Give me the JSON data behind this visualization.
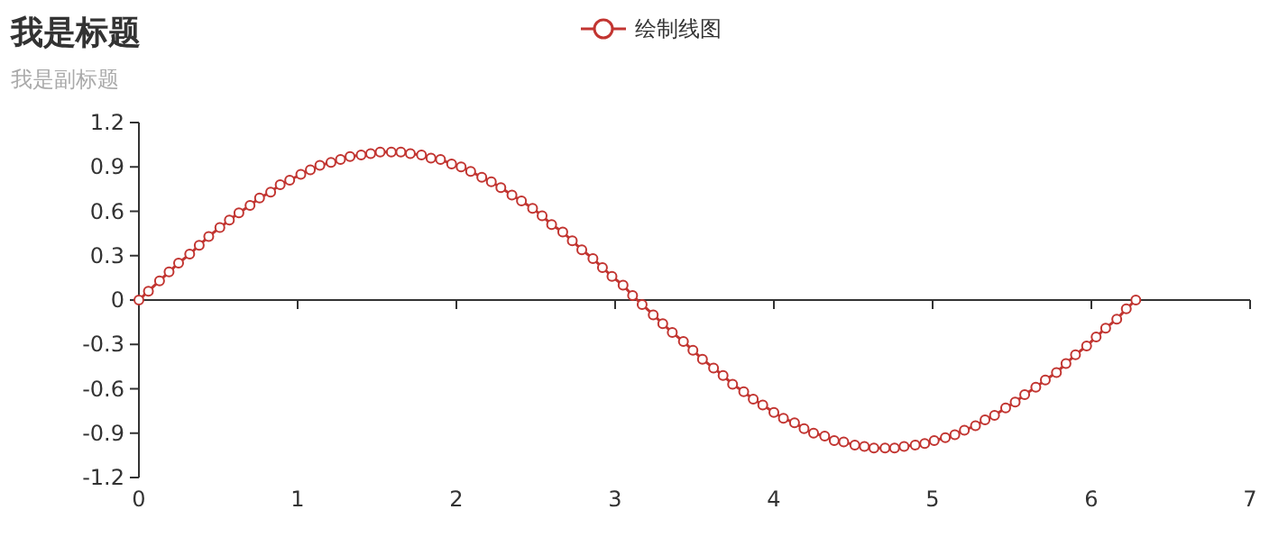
{
  "chart_data": {
    "type": "line",
    "title": "我是标题",
    "subtitle": "我是副标题",
    "x": [
      0,
      0.06,
      0.13,
      0.19,
      0.25,
      0.32,
      0.38,
      0.44,
      0.51,
      0.57,
      0.63,
      0.7,
      0.76,
      0.83,
      0.89,
      0.95,
      1.02,
      1.08,
      1.14,
      1.21,
      1.27,
      1.33,
      1.4,
      1.46,
      1.52,
      1.59,
      1.65,
      1.71,
      1.78,
      1.84,
      1.9,
      1.97,
      2.03,
      2.09,
      2.16,
      2.22,
      2.28,
      2.35,
      2.41,
      2.48,
      2.54,
      2.6,
      2.67,
      2.73,
      2.79,
      2.86,
      2.92,
      2.98,
      3.05,
      3.11,
      3.17,
      3.24,
      3.3,
      3.36,
      3.43,
      3.49,
      3.55,
      3.62,
      3.68,
      3.74,
      3.81,
      3.87,
      3.93,
      4.0,
      4.06,
      4.13,
      4.19,
      4.25,
      4.32,
      4.38,
      4.44,
      4.51,
      4.57,
      4.63,
      4.7,
      4.76,
      4.82,
      4.89,
      4.95,
      5.01,
      5.08,
      5.14,
      5.2,
      5.27,
      5.33,
      5.39,
      5.46,
      5.52,
      5.58,
      5.65,
      5.71,
      5.78,
      5.84,
      5.9,
      5.97,
      6.03,
      6.09,
      6.16,
      6.22,
      6.28
    ],
    "series": [
      {
        "name": "绘制线图",
        "color": "#c23531",
        "values": [
          0,
          0.06,
          0.13,
          0.19,
          0.25,
          0.31,
          0.37,
          0.43,
          0.49,
          0.54,
          0.59,
          0.64,
          0.69,
          0.73,
          0.78,
          0.81,
          0.85,
          0.88,
          0.91,
          0.93,
          0.95,
          0.97,
          0.98,
          0.99,
          1.0,
          1.0,
          1.0,
          0.99,
          0.98,
          0.96,
          0.95,
          0.92,
          0.9,
          0.87,
          0.83,
          0.8,
          0.76,
          0.71,
          0.67,
          0.62,
          0.57,
          0.51,
          0.46,
          0.4,
          0.34,
          0.28,
          0.22,
          0.16,
          0.1,
          0.03,
          -0.03,
          -0.1,
          -0.16,
          -0.22,
          -0.28,
          -0.34,
          -0.4,
          -0.46,
          -0.51,
          -0.57,
          -0.62,
          -0.67,
          -0.71,
          -0.76,
          -0.8,
          -0.83,
          -0.87,
          -0.9,
          -0.92,
          -0.95,
          -0.96,
          -0.98,
          -0.99,
          -1.0,
          -1.0,
          -1.0,
          -0.99,
          -0.98,
          -0.97,
          -0.95,
          -0.93,
          -0.91,
          -0.88,
          -0.85,
          -0.81,
          -0.78,
          -0.73,
          -0.69,
          -0.64,
          -0.59,
          -0.54,
          -0.49,
          -0.43,
          -0.37,
          -0.31,
          -0.25,
          -0.19,
          -0.13,
          -0.06,
          0
        ]
      }
    ],
    "xlim": [
      0,
      7
    ],
    "xticks": [
      0,
      1,
      2,
      3,
      4,
      5,
      6,
      7
    ],
    "ylim": [
      -1.2,
      1.2
    ],
    "yticks": [
      -1.2,
      -0.9,
      -0.6,
      -0.3,
      0,
      0.3,
      0.6,
      0.9,
      1.2
    ],
    "legend": "top",
    "marker": "circle"
  }
}
